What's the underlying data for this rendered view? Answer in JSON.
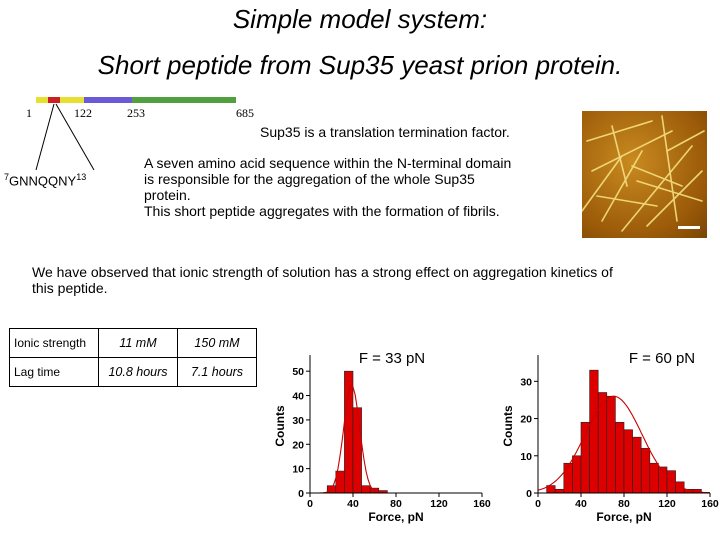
{
  "title": {
    "line1": "Simple model system:",
    "line2": "Short peptide from Sup35 yeast prion protein."
  },
  "protein_map": {
    "positions": [
      "1",
      "122",
      "253",
      "685"
    ],
    "segment_colors": [
      "#e8e030",
      "#cc2020",
      "#e8e030",
      "#6a5ad8",
      "#50a040"
    ],
    "peptide_label": {
      "start": "7",
      "seq": "GNNQQNY",
      "end": "13"
    }
  },
  "text": {
    "sup35": "Sup35 is a translation termination factor.",
    "desc_lines": [
      "A seven amino acid sequence within the N-terminal domain",
      "is  responsible for the aggregation of the whole Sup35",
      "protein.",
      "This short peptide aggregates with the formation of fibrils."
    ],
    "observation_lines": [
      "We have observed that ionic strength of solution has a strong effect on aggregation kinetics of",
      "this peptide."
    ]
  },
  "table": {
    "rows": [
      {
        "label": "Ionic strength",
        "v1": "11 mM",
        "v2": "150 mM"
      },
      {
        "label": "Lag time",
        "v1": "10.8 hours",
        "v2": "7.1 hours"
      }
    ]
  },
  "chart_data": [
    {
      "type": "bar",
      "annotation": "F = 33 pN",
      "xlabel": "Force, pN",
      "ylabel": "Counts",
      "xlim": [
        0,
        160
      ],
      "ylim": [
        0,
        55
      ],
      "xticks": [
        0,
        40,
        80,
        120,
        160
      ],
      "yticks": [
        0,
        10,
        20,
        30,
        40,
        50
      ],
      "bin_width": 8,
      "x": [
        20,
        28,
        36,
        44,
        52,
        60,
        68
      ],
      "values": [
        3,
        9,
        50,
        35,
        3,
        2,
        1
      ],
      "fit": "gaussian",
      "bar_color": "#dd0000"
    },
    {
      "type": "bar",
      "annotation": "F = 60 pN",
      "xlabel": "Force, pN",
      "ylabel": "Counts",
      "xlim": [
        0,
        160
      ],
      "ylim": [
        0,
        36
      ],
      "xticks": [
        0,
        40,
        80,
        120,
        160
      ],
      "yticks": [
        0,
        10,
        20,
        30
      ],
      "bin_width": 8,
      "x": [
        12,
        20,
        28,
        36,
        44,
        52,
        60,
        68,
        76,
        84,
        92,
        100,
        108,
        116,
        124,
        132,
        140,
        148
      ],
      "values": [
        2,
        1,
        8,
        10,
        19,
        33,
        27,
        26,
        19,
        17,
        15,
        12,
        8,
        7,
        6,
        3,
        1,
        1
      ],
      "fit": "gaussian",
      "bar_color": "#dd0000"
    }
  ]
}
